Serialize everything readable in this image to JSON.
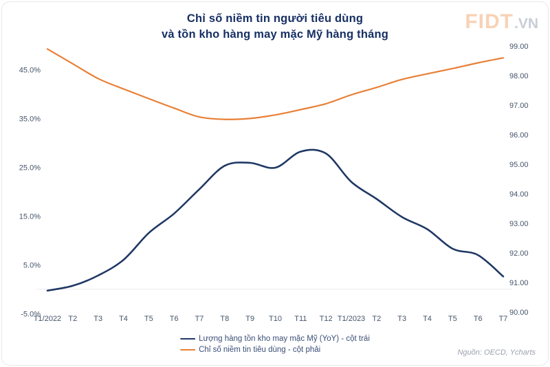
{
  "title": {
    "line1": "Chỉ số niềm tin người tiêu dùng",
    "line2": "và tồn kho hàng may mặc Mỹ hàng tháng"
  },
  "logo": {
    "brand": "FIDT",
    "suffix": ".VN"
  },
  "source": "Nguồn: OECD, Ycharts",
  "colors": {
    "inventory_line": "#1f3864",
    "confidence_line": "#e87f35",
    "gridline": "#e8e9ec",
    "tick_text": "#44546a"
  },
  "legend": [
    {
      "label": "Lượng hàng tồn kho may mặc Mỹ (YoY) - cột trái",
      "color": "#1f3864"
    },
    {
      "label": "Chỉ số niềm tin tiêu dùng - cột phải",
      "color": "#e87f35"
    }
  ],
  "chart_data": {
    "type": "line",
    "title": "Chỉ số niềm tin người tiêu dùng và tồn kho hàng may mặc Mỹ hàng tháng",
    "categories": [
      "T1/2022",
      "T2",
      "T3",
      "T4",
      "T5",
      "T6",
      "T7",
      "T8",
      "T9",
      "T10",
      "T11",
      "T12",
      "T1/2023",
      "T2",
      "T3",
      "T4",
      "T5",
      "T6",
      "T7"
    ],
    "series": [
      {
        "name": "Lượng hàng tồn kho may mặc Mỹ (YoY) - cột trái",
        "axis": "left",
        "color": "#1f3864",
        "values": [
          -0.3,
          0.7,
          2.8,
          6.0,
          11.5,
          15.5,
          20.5,
          25.3,
          25.9,
          24.9,
          28.2,
          27.8,
          22.0,
          18.5,
          14.8,
          12.3,
          8.3,
          7.0,
          2.6
        ]
      },
      {
        "name": "Chỉ số niềm tin tiêu dùng - cột phải",
        "axis": "right",
        "color": "#e87f35",
        "values": [
          98.9,
          98.4,
          97.9,
          97.55,
          97.22,
          96.9,
          96.6,
          96.52,
          96.55,
          96.67,
          96.85,
          97.05,
          97.35,
          97.6,
          97.87,
          98.06,
          98.24,
          98.43,
          98.6
        ]
      }
    ],
    "left_axis": {
      "unit": "%",
      "range": [
        -5,
        45
      ],
      "tick_values": [
        45,
        35,
        25,
        15,
        5,
        -5
      ],
      "tick_labels": [
        "45.0%",
        "35.0%",
        "25.0%",
        "15.0%",
        "5.0%",
        "-5.0%"
      ]
    },
    "right_axis": {
      "range": [
        90,
        99
      ],
      "tick_values": [
        99,
        98,
        97,
        96,
        95,
        94,
        93,
        92,
        91,
        90
      ],
      "tick_labels": [
        "99.00",
        "98.00",
        "97.00",
        "96.00",
        "95.00",
        "94.00",
        "93.00",
        "92.00",
        "91.00",
        "90.00"
      ]
    },
    "grid": "zero-line-only",
    "legend_position": "bottom-center"
  }
}
